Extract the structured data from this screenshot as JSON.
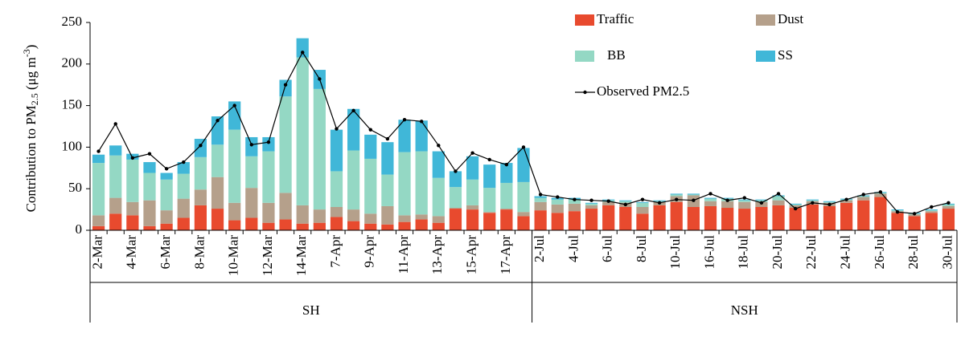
{
  "chart_data": {
    "type": "stacked_bar_line",
    "y_label": [
      "Contribution to PM",
      "2.5",
      " (μg m",
      "-3",
      ")"
    ],
    "groups": [
      {
        "name": "SH",
        "categories": [
          "2-Mar",
          null,
          "4-Mar",
          null,
          "6-Mar",
          null,
          "8-Mar",
          null,
          "10-Mar",
          null,
          "12-Mar",
          null,
          "14-Mar",
          null,
          "7-Apr",
          null,
          "9-Apr",
          null,
          "11-Apr",
          null,
          "13-Apr",
          null,
          "15-Apr",
          null,
          "17-Apr",
          null
        ]
      },
      {
        "name": "NSH",
        "categories": [
          "2-Jul",
          null,
          "4-Jul",
          null,
          "6-Jul",
          null,
          "8-Jul",
          null,
          "10-Jul",
          null,
          "16-Jul",
          null,
          "18-Jul",
          null,
          "20-Jul",
          null,
          "22-Jul",
          null,
          "24-Jul",
          null,
          "26-Jul",
          null,
          "28-Jul",
          null,
          "30-Jul"
        ]
      }
    ],
    "series": [
      {
        "name": "Traffic",
        "color": "#e84a2e",
        "values": [
          5,
          20,
          18,
          5,
          8,
          15,
          30,
          26,
          12,
          15,
          9,
          13,
          8,
          9,
          16,
          11,
          8,
          7,
          10,
          13,
          9,
          26,
          25,
          21,
          25,
          17,
          24,
          21,
          23,
          26,
          30,
          28,
          20,
          30,
          34,
          28,
          29,
          27,
          26,
          28,
          30,
          27,
          31,
          29,
          33,
          36,
          40,
          21,
          17,
          21,
          26
        ]
      },
      {
        "name": "Dust",
        "color": "#b5a08b",
        "values": [
          13,
          19,
          16,
          31,
          16,
          23,
          19,
          38,
          21,
          36,
          24,
          32,
          22,
          16,
          12,
          14,
          12,
          22,
          8,
          6,
          8,
          1,
          5,
          1,
          1,
          5,
          10,
          10,
          9,
          4,
          4,
          5,
          8,
          4,
          7,
          14,
          6,
          8,
          8,
          6,
          6,
          3,
          4,
          4,
          3,
          4,
          4,
          2,
          2,
          2,
          3
        ]
      },
      {
        "name": "BB",
        "color": "#94d8c4",
        "values": [
          63,
          51,
          51,
          33,
          37,
          30,
          39,
          39,
          88,
          38,
          62,
          116,
          178,
          145,
          43,
          71,
          66,
          38,
          76,
          76,
          46,
          25,
          31,
          29,
          31,
          36,
          5,
          6,
          5,
          2,
          2,
          2,
          5,
          1,
          2,
          1,
          3,
          3,
          2,
          2,
          5,
          1,
          1,
          1,
          1,
          1,
          1,
          1,
          1,
          1,
          2
        ]
      },
      {
        "name": "SS",
        "color": "#40b7d8",
        "values": [
          10,
          12,
          7,
          13,
          8,
          14,
          22,
          34,
          34,
          23,
          17,
          20,
          23,
          23,
          50,
          50,
          29,
          39,
          39,
          37,
          32,
          19,
          28,
          28,
          24,
          41,
          2,
          2,
          2,
          1,
          1,
          1,
          1,
          1,
          1,
          1,
          1,
          1,
          1,
          1,
          1,
          1,
          1,
          1,
          1,
          1,
          1,
          1,
          1,
          1,
          1
        ]
      }
    ],
    "line": {
      "name": "Observed PM2.5",
      "color": "#000000",
      "values": [
        95,
        128,
        87,
        92,
        74,
        82,
        102,
        132,
        150,
        103,
        106,
        175,
        214,
        182,
        122,
        144,
        121,
        110,
        133,
        131,
        102,
        71,
        93,
        85,
        79,
        100,
        43,
        40,
        37,
        36,
        35,
        31,
        37,
        33,
        37,
        36,
        44,
        36,
        39,
        33,
        44,
        26,
        33,
        31,
        37,
        43,
        46,
        22,
        20,
        28,
        33
      ]
    },
    "ylim": [
      0,
      250
    ],
    "yticks": [
      0,
      50,
      100,
      150,
      200,
      250
    ]
  }
}
